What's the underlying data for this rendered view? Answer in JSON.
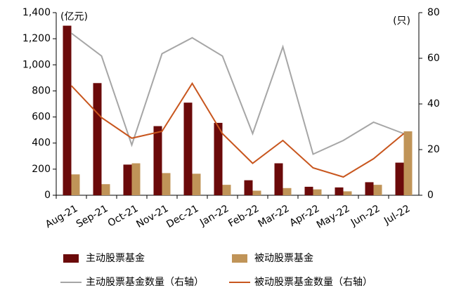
{
  "chart_data": {
    "type": "bar",
    "y_unit_label": "(亿元)",
    "y2_unit_label": "(只)",
    "categories": [
      "Aug-21",
      "Sep-21",
      "Oct-21",
      "Nov-21",
      "Dec-21",
      "Jan-22",
      "Feb-22",
      "Mar-22",
      "Apr-22",
      "May-22",
      "Jun-22",
      "Jul-22"
    ],
    "series": [
      {
        "name": "主动股票基金",
        "type": "bar",
        "color": "#6b0a0a",
        "values": [
          1300,
          860,
          235,
          530,
          710,
          555,
          115,
          245,
          65,
          60,
          100,
          250
        ]
      },
      {
        "name": "被动股票基金",
        "type": "bar",
        "color": "#c09458",
        "values": [
          160,
          85,
          245,
          170,
          165,
          80,
          35,
          55,
          45,
          30,
          80,
          490
        ]
      },
      {
        "name": "主动股票基金数量（右轴）",
        "type": "line",
        "axis": "y2",
        "color": "#a6a6a6",
        "values": [
          71,
          61,
          22,
          62,
          69,
          61,
          27,
          65,
          18,
          24,
          32,
          27
        ]
      },
      {
        "name": "被动股票基金数量（右轴）",
        "type": "line",
        "axis": "y2",
        "color": "#c8561e",
        "values": [
          48,
          34,
          25,
          28,
          49,
          27,
          14,
          24,
          12,
          8,
          16,
          27
        ]
      }
    ],
    "ylim": [
      0,
      1400
    ],
    "yticks": [
      0,
      200,
      400,
      600,
      800,
      {
        "value": 1000,
        "label": "1,000"
      },
      {
        "value": 1200,
        "label": "1,200"
      },
      {
        "value": 1400,
        "label": "1,400"
      }
    ],
    "y2lim": [
      0,
      80
    ],
    "y2ticks": [
      0,
      20,
      40,
      60,
      80
    ]
  }
}
